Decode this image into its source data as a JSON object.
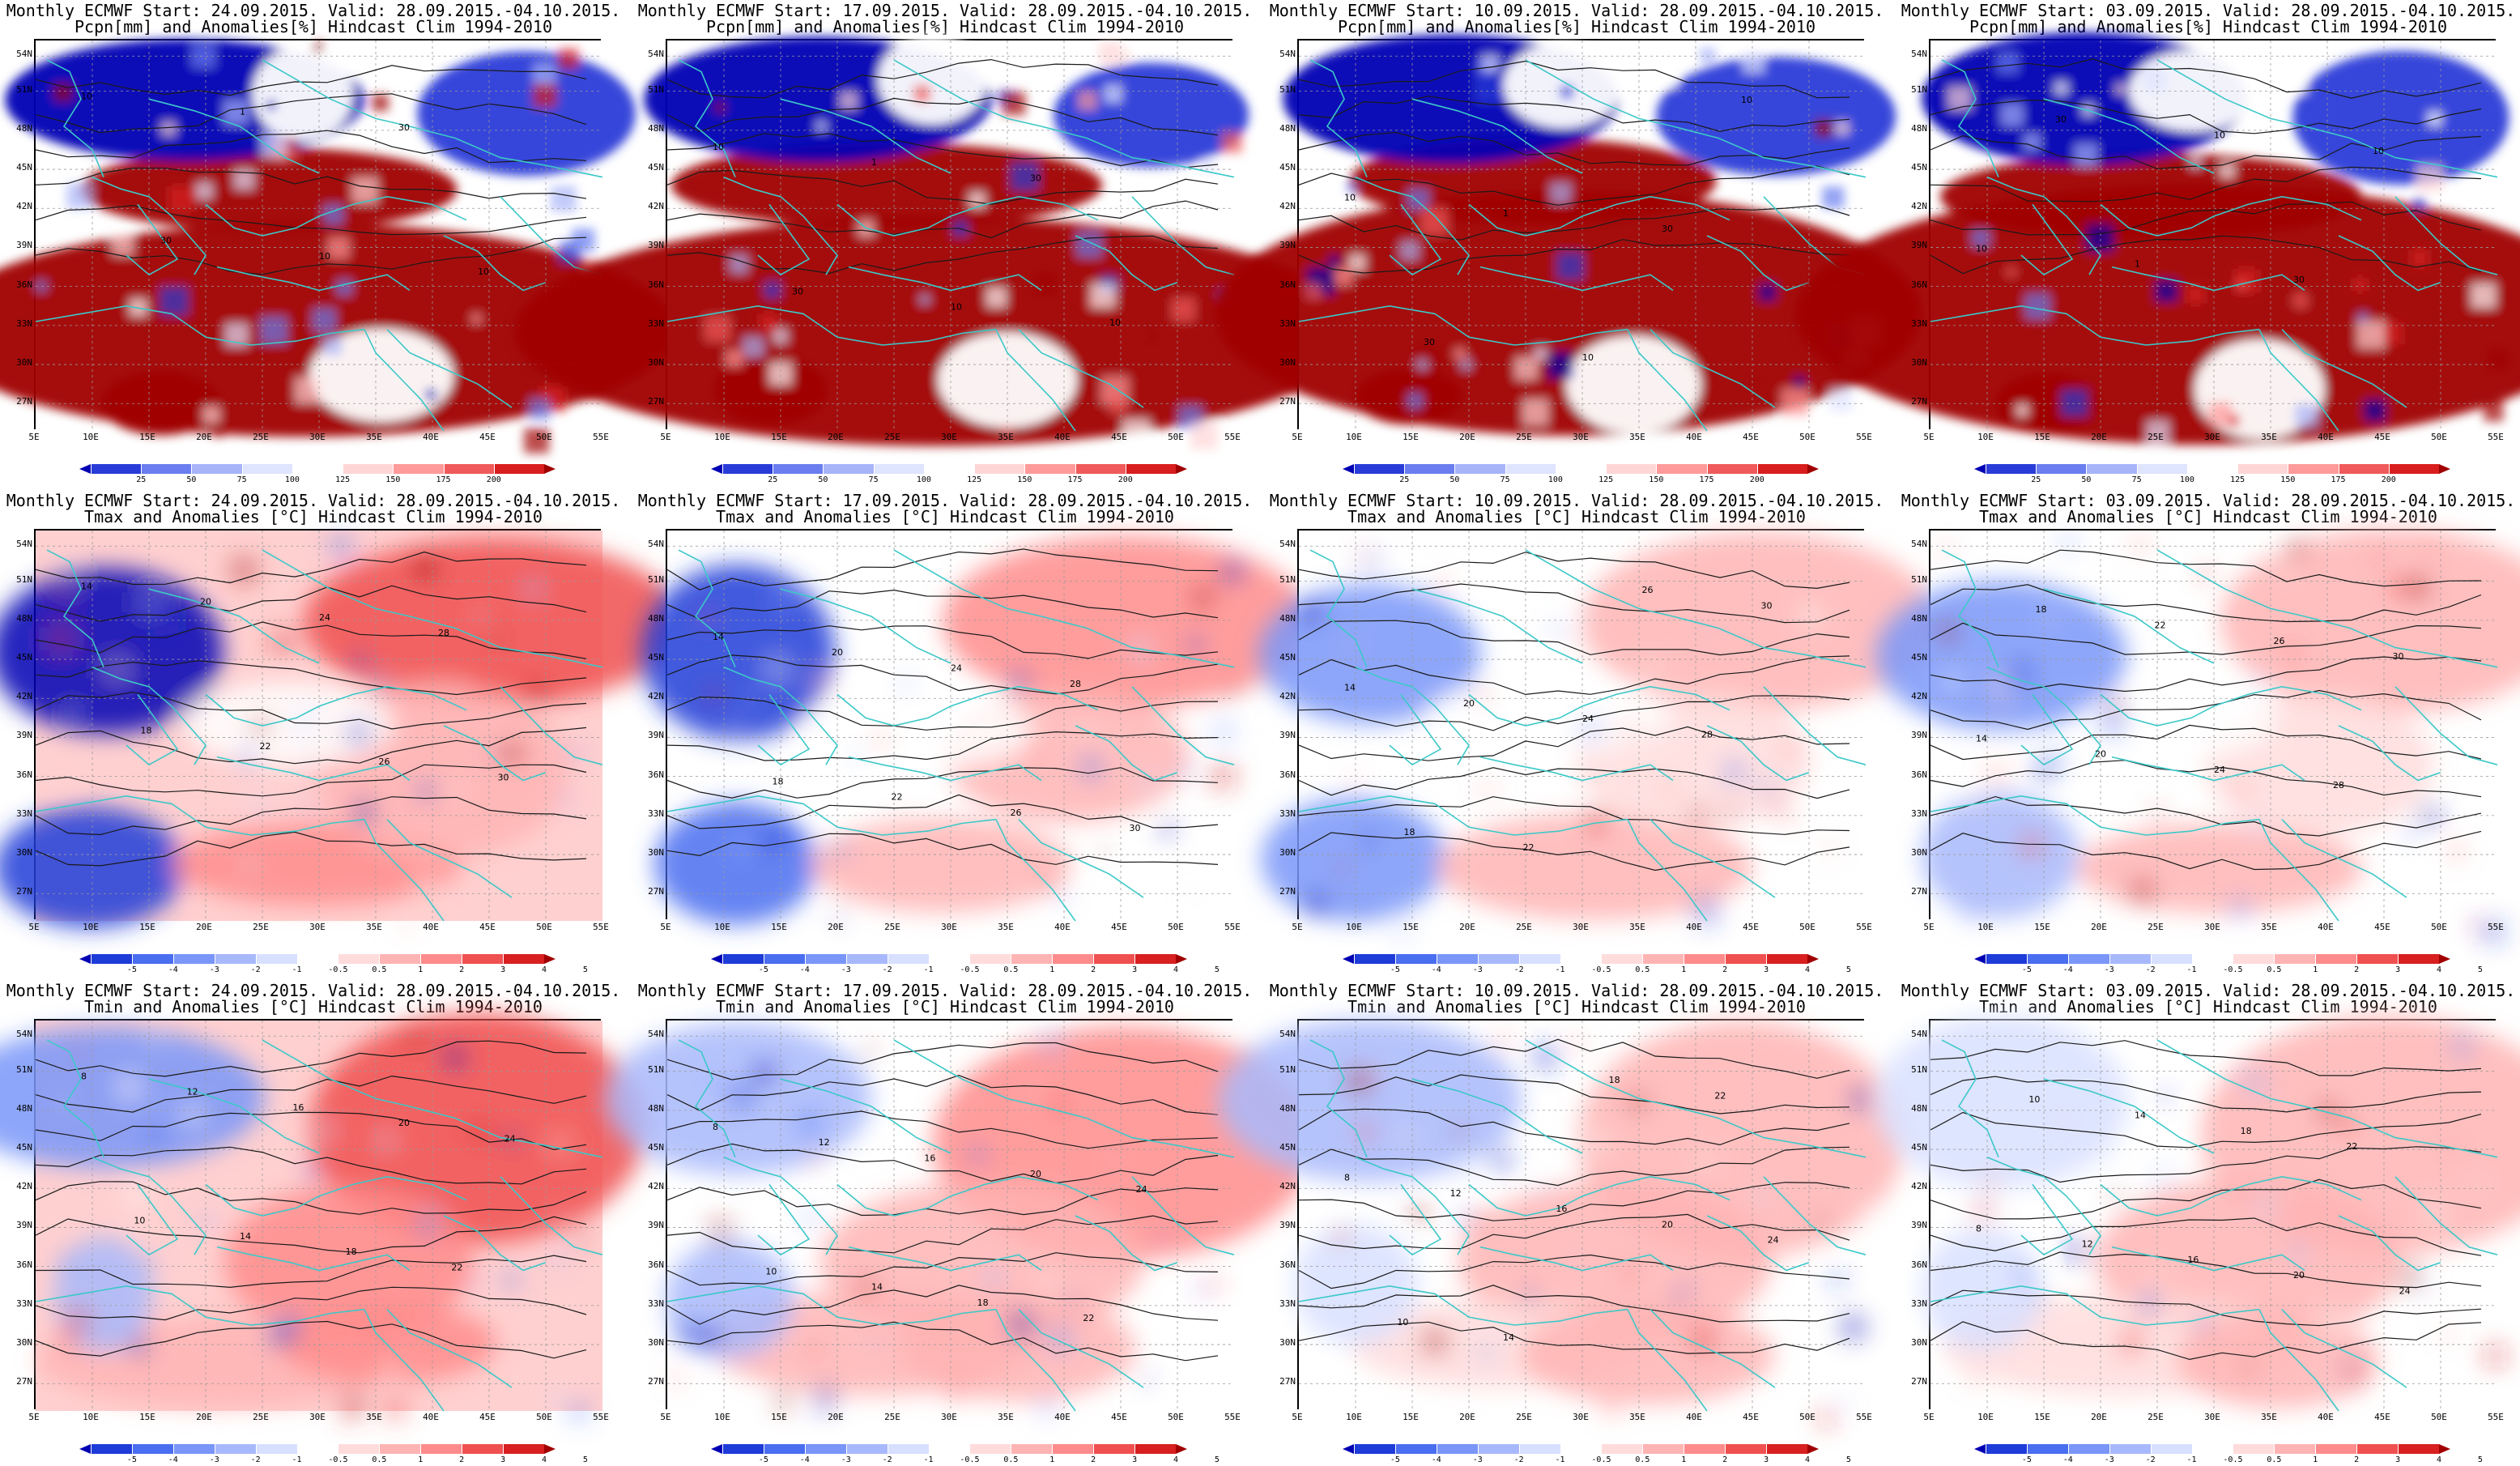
{
  "valid": "28.09.2015.-04.10.2015.",
  "rows": [
    {
      "id": "pcpn",
      "title2": "Pcpn[mm] and Anomalies[%] Hindcast Clim 1994-2010",
      "colorbar_ticks": [
        "25",
        "50",
        "75",
        "100",
        "125",
        "150",
        "175",
        "200"
      ],
      "contour_labels": [
        "10",
        "30",
        "1",
        "10",
        "30",
        "10"
      ]
    },
    {
      "id": "tmax",
      "title2": "Tmax and Anomalies [°C] Hindcast Clim 1994-2010",
      "colorbar_ticks": [
        "-5",
        "-4",
        "-3",
        "-2",
        "-1",
        "-0.5",
        "0.5",
        "1",
        "2",
        "3",
        "4",
        "5"
      ],
      "contour_labels": [
        "14",
        "18",
        "20",
        "22",
        "24",
        "26",
        "28",
        "30"
      ]
    },
    {
      "id": "tmin",
      "title2": "Tmin and Anomalies [°C] Hindcast Clim 1994-2010",
      "colorbar_ticks": [
        "-5",
        "-4",
        "-3",
        "-2",
        "-1",
        "-0.5",
        "0.5",
        "1",
        "2",
        "3",
        "4",
        "5"
      ],
      "contour_labels": [
        "8",
        "10",
        "12",
        "14",
        "16",
        "18",
        "20",
        "22",
        "24"
      ]
    }
  ],
  "columns": [
    {
      "start": "24.09.2015",
      "title1": "Monthly ECMWF Start: 24.09.2015. Valid: 28.09.2015.-04.10.2015."
    },
    {
      "start": "17.09.2015",
      "title1": "Monthly ECMWF Start: 17.09.2015. Valid: 28.09.2015.-04.10.2015."
    },
    {
      "start": "10.09.2015",
      "title1": "Monthly ECMWF Start: 10.09.2015. Valid: 28.09.2015.-04.10.2015."
    },
    {
      "start": "03.09.2015",
      "title1": "Monthly ECMWF Start: 03.09.2015. Valid: 28.09.2015.-04.10.2015."
    }
  ],
  "lat_labels": [
    "54N",
    "51N",
    "48N",
    "45N",
    "42N",
    "39N",
    "36N",
    "33N",
    "30N",
    "27N"
  ],
  "lon_labels": [
    "5E",
    "10E",
    "15E",
    "20E",
    "25E",
    "30E",
    "35E",
    "40E",
    "45E",
    "50E",
    "55E"
  ],
  "colors": {
    "pcpn_scale": [
      "#0000b4",
      "#2a3cd8",
      "#6a7ef0",
      "#a8b4f8",
      "#dfe4ff",
      "#ffffff",
      "#ffd6d6",
      "#ff9a9a",
      "#f05a5a",
      "#d81e1e",
      "#a00000"
    ],
    "temp_scale": [
      "#0000b4",
      "#1e3cd8",
      "#4a6ef0",
      "#7a96f8",
      "#a8b8fc",
      "#d8e0ff",
      "#ffffff",
      "#ffdcdc",
      "#ffb4b4",
      "#ff8c8c",
      "#f05050",
      "#d82020",
      "#a00000"
    ],
    "coast": "#3cc8c8",
    "contour": "#1a1a1a"
  }
}
